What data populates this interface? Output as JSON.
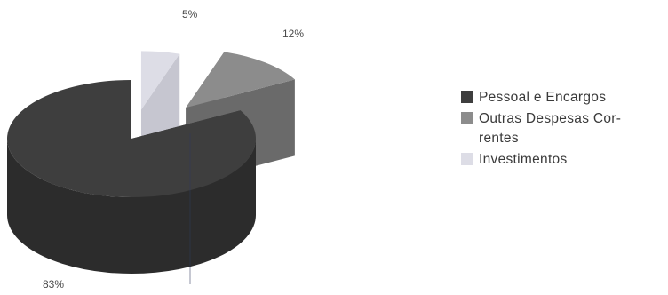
{
  "chart_data": {
    "type": "pie",
    "title": "",
    "style": "3d-exploded",
    "slices": [
      {
        "label": "Pessoal e Encargos",
        "value": 83,
        "percent_label": "83%",
        "color": "#3e3e3e",
        "side_color": "#2c2c2c"
      },
      {
        "label": "Outras Despesas Correntes",
        "label_display": "Outras Despesas Cor-\nrentes",
        "value": 12,
        "percent_label": "12%",
        "color": "#8c8c8c",
        "side_color": "#6a6a6a"
      },
      {
        "label": "Investimentos",
        "value": 5,
        "percent_label": "5%",
        "color": "#dddde6",
        "side_color": "#c6c6d0"
      }
    ],
    "legend_position": "right"
  }
}
